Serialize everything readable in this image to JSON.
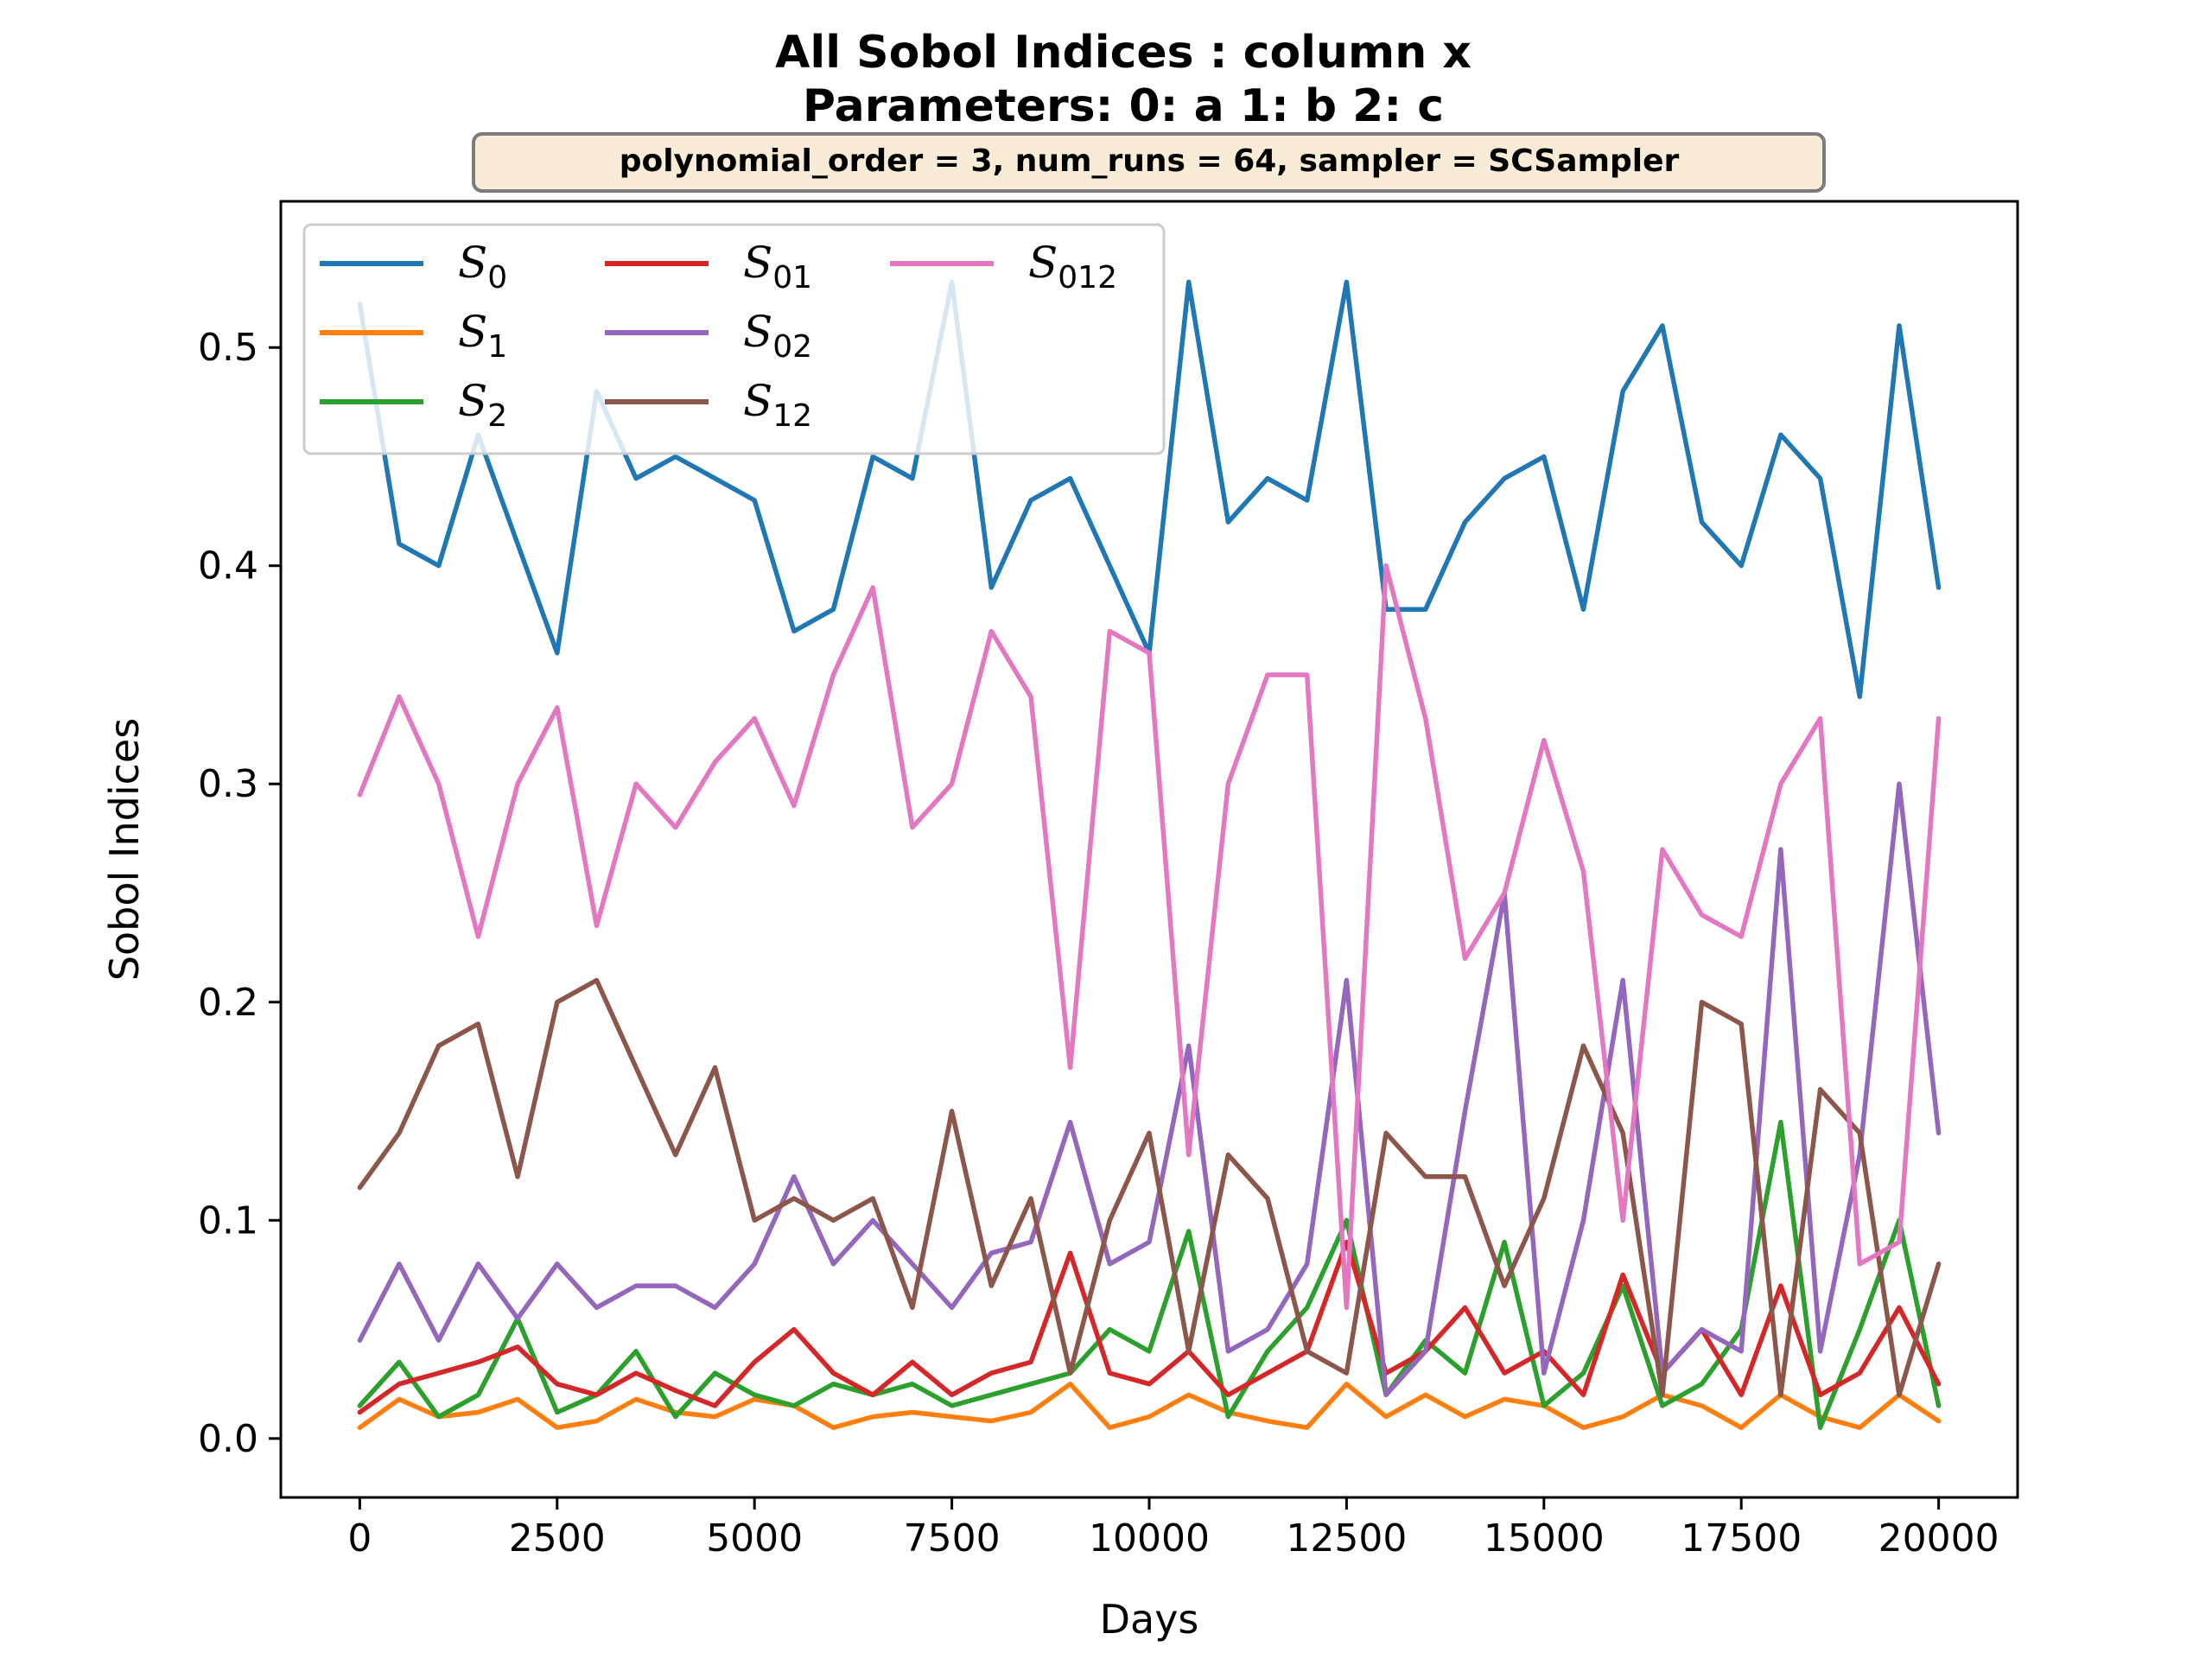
{
  "chart_data": {
    "type": "line",
    "title": "All Sobol Indices : column x",
    "subtitle": "Parameters: 0: a 1: b 2: c",
    "parameter_box": "polynomial_order = 3, num_runs = 64, sampler = SCSampler",
    "xlabel": "Days",
    "ylabel": "Sobol Indices",
    "xlim": [
      -1000,
      21000
    ],
    "ylim": [
      -0.027,
      0.567
    ],
    "x_ticks": [
      0,
      2500,
      5000,
      7500,
      10000,
      12500,
      15000,
      17500,
      20000
    ],
    "x_tick_labels": [
      "0",
      "2500",
      "5000",
      "7500",
      "10000",
      "12500",
      "15000",
      "17500",
      "20000"
    ],
    "y_ticks": [
      0.0,
      0.1,
      0.2,
      0.3,
      0.4,
      0.5
    ],
    "y_tick_labels": [
      "0.0",
      "0.1",
      "0.2",
      "0.3",
      "0.4",
      "0.5"
    ],
    "grid": false,
    "legend_position": "top-left",
    "x": [
      0,
      500,
      1000,
      1500,
      2000,
      2500,
      3000,
      3500,
      4000,
      4500,
      5000,
      5500,
      6000,
      6500,
      7000,
      7500,
      8000,
      8500,
      9000,
      9500,
      10000,
      10500,
      11000,
      11500,
      12000,
      12500,
      13000,
      13500,
      14000,
      14500,
      15000,
      15500,
      16000,
      16500,
      17000,
      17500,
      18000,
      18500,
      19000,
      19500,
      20000
    ],
    "series": [
      {
        "name": "S",
        "sub": "0",
        "color": "#1f77b4",
        "values": [
          0.52,
          0.41,
          0.4,
          0.46,
          0.41,
          0.36,
          0.48,
          0.44,
          0.45,
          0.44,
          0.43,
          0.37,
          0.38,
          0.45,
          0.44,
          0.53,
          0.39,
          0.43,
          0.44,
          0.4,
          0.36,
          0.53,
          0.42,
          0.44,
          0.43,
          0.53,
          0.38,
          0.38,
          0.42,
          0.44,
          0.45,
          0.38,
          0.48,
          0.51,
          0.42,
          0.4,
          0.46,
          0.44,
          0.34,
          0.51,
          0.39
        ]
      },
      {
        "name": "S",
        "sub": "1",
        "color": "#ff7f0e",
        "values": [
          0.005,
          0.018,
          0.01,
          0.012,
          0.018,
          0.005,
          0.008,
          0.018,
          0.012,
          0.01,
          0.018,
          0.015,
          0.005,
          0.01,
          0.012,
          0.01,
          0.008,
          0.012,
          0.025,
          0.005,
          0.01,
          0.02,
          0.012,
          0.008,
          0.005,
          0.025,
          0.01,
          0.02,
          0.01,
          0.018,
          0.015,
          0.005,
          0.01,
          0.02,
          0.015,
          0.005,
          0.02,
          0.01,
          0.005,
          0.02,
          0.008
        ]
      },
      {
        "name": "S",
        "sub": "2",
        "color": "#2ca02c",
        "values": [
          0.015,
          0.035,
          0.01,
          0.02,
          0.055,
          0.012,
          0.02,
          0.04,
          0.01,
          0.03,
          0.02,
          0.015,
          0.025,
          0.02,
          0.025,
          0.015,
          0.02,
          0.025,
          0.03,
          0.05,
          0.04,
          0.095,
          0.01,
          0.04,
          0.06,
          0.1,
          0.02,
          0.045,
          0.03,
          0.09,
          0.015,
          0.03,
          0.07,
          0.015,
          0.025,
          0.05,
          0.145,
          0.005,
          0.05,
          0.1,
          0.015
        ]
      },
      {
        "name": "S",
        "sub": "01",
        "color": "#d62728",
        "values": [
          0.012,
          0.025,
          0.03,
          0.035,
          0.042,
          0.025,
          0.02,
          0.03,
          0.022,
          0.015,
          0.035,
          0.05,
          0.03,
          0.02,
          0.035,
          0.02,
          0.03,
          0.035,
          0.085,
          0.03,
          0.025,
          0.04,
          0.02,
          0.03,
          0.04,
          0.09,
          0.03,
          0.04,
          0.06,
          0.03,
          0.04,
          0.02,
          0.075,
          0.03,
          0.05,
          0.02,
          0.07,
          0.02,
          0.03,
          0.06,
          0.025
        ]
      },
      {
        "name": "S",
        "sub": "02",
        "color": "#9467bd",
        "values": [
          0.045,
          0.08,
          0.045,
          0.08,
          0.055,
          0.08,
          0.06,
          0.07,
          0.07,
          0.06,
          0.08,
          0.12,
          0.08,
          0.1,
          0.08,
          0.06,
          0.085,
          0.09,
          0.145,
          0.08,
          0.09,
          0.18,
          0.04,
          0.05,
          0.08,
          0.21,
          0.02,
          0.04,
          0.15,
          0.25,
          0.03,
          0.1,
          0.21,
          0.03,
          0.05,
          0.04,
          0.27,
          0.04,
          0.13,
          0.3,
          0.14
        ]
      },
      {
        "name": "S",
        "sub": "12",
        "color": "#8c564b",
        "values": [
          0.115,
          0.14,
          0.18,
          0.19,
          0.12,
          0.2,
          0.21,
          0.17,
          0.13,
          0.17,
          0.1,
          0.11,
          0.1,
          0.11,
          0.06,
          0.15,
          0.07,
          0.11,
          0.03,
          0.1,
          0.14,
          0.04,
          0.13,
          0.11,
          0.04,
          0.03,
          0.14,
          0.12,
          0.12,
          0.07,
          0.11,
          0.18,
          0.14,
          0.02,
          0.2,
          0.19,
          0.02,
          0.16,
          0.14,
          0.02,
          0.08
        ]
      },
      {
        "name": "S",
        "sub": "012",
        "color": "#e377c2",
        "values": [
          0.295,
          0.34,
          0.3,
          0.23,
          0.3,
          0.335,
          0.235,
          0.3,
          0.28,
          0.31,
          0.33,
          0.29,
          0.35,
          0.39,
          0.28,
          0.3,
          0.37,
          0.34,
          0.17,
          0.37,
          0.36,
          0.13,
          0.3,
          0.35,
          0.35,
          0.06,
          0.4,
          0.33,
          0.22,
          0.25,
          0.32,
          0.26,
          0.1,
          0.27,
          0.24,
          0.23,
          0.3,
          0.33,
          0.08,
          0.09,
          0.33
        ]
      }
    ]
  }
}
